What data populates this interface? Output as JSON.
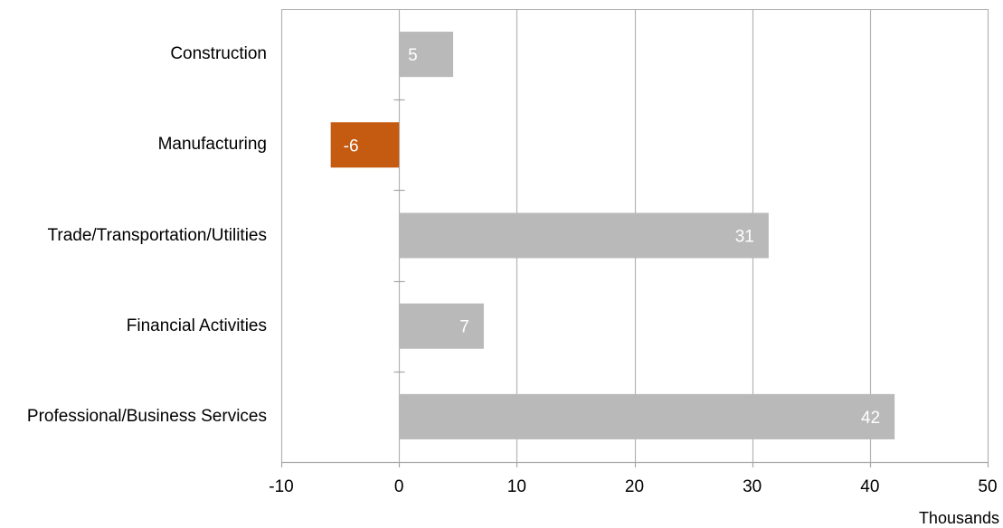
{
  "chart_data": {
    "type": "bar",
    "orientation": "horizontal",
    "categories": [
      "Construction",
      "Manufacturing",
      "Trade/Transportation/Utilities",
      "Financial Activities",
      "Professional/Business Services"
    ],
    "values": [
      4.6,
      -5.8,
      31.4,
      7.2,
      42.1
    ],
    "data_labels": [
      "5",
      "-6",
      "31",
      "7",
      "42"
    ],
    "bar_colors": [
      "#b9b9b9",
      "#c55a11",
      "#b9b9b9",
      "#b9b9b9",
      "#b9b9b9"
    ],
    "xlim": [
      -10,
      50
    ],
    "xticks": [
      -10,
      0,
      10,
      20,
      30,
      40,
      50
    ],
    "xtick_labels": [
      "-10",
      "0",
      "10",
      "20",
      "30",
      "40",
      "50"
    ],
    "unit_label": "Thousands",
    "grid": true,
    "colors": {
      "gridline": "#b3b3b3",
      "axis": "#a6a6a6",
      "data_label": "#ffffff"
    }
  }
}
